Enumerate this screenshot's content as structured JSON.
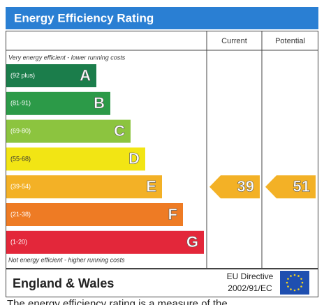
{
  "title": "Energy Efficiency Rating",
  "columns": [
    "Current",
    "Potential"
  ],
  "top_note": "Very energy efficient - lower running costs",
  "bottom_note": "Not energy efficient - higher running costs",
  "bands": [
    {
      "range": "(92 plus)",
      "letter": "A",
      "color": "#1b7d4b"
    },
    {
      "range": "(81-91)",
      "letter": "B",
      "color": "#2c9a48"
    },
    {
      "range": "(69-80)",
      "letter": "C",
      "color": "#8cc43f"
    },
    {
      "range": "(55-68)",
      "letter": "D",
      "color": "#f2e514"
    },
    {
      "range": "(39-54)",
      "letter": "E",
      "color": "#f3b126"
    },
    {
      "range": "(21-38)",
      "letter": "F",
      "color": "#ee7b24"
    },
    {
      "range": "(1-20)",
      "letter": "G",
      "color": "#e3273a"
    }
  ],
  "current": 39,
  "potential": 51,
  "footer": {
    "region": "England & Wales",
    "directive": "EU Directive",
    "code": "2002/91/EC"
  },
  "caption": "The energy efficiency rating is a measure of the"
}
